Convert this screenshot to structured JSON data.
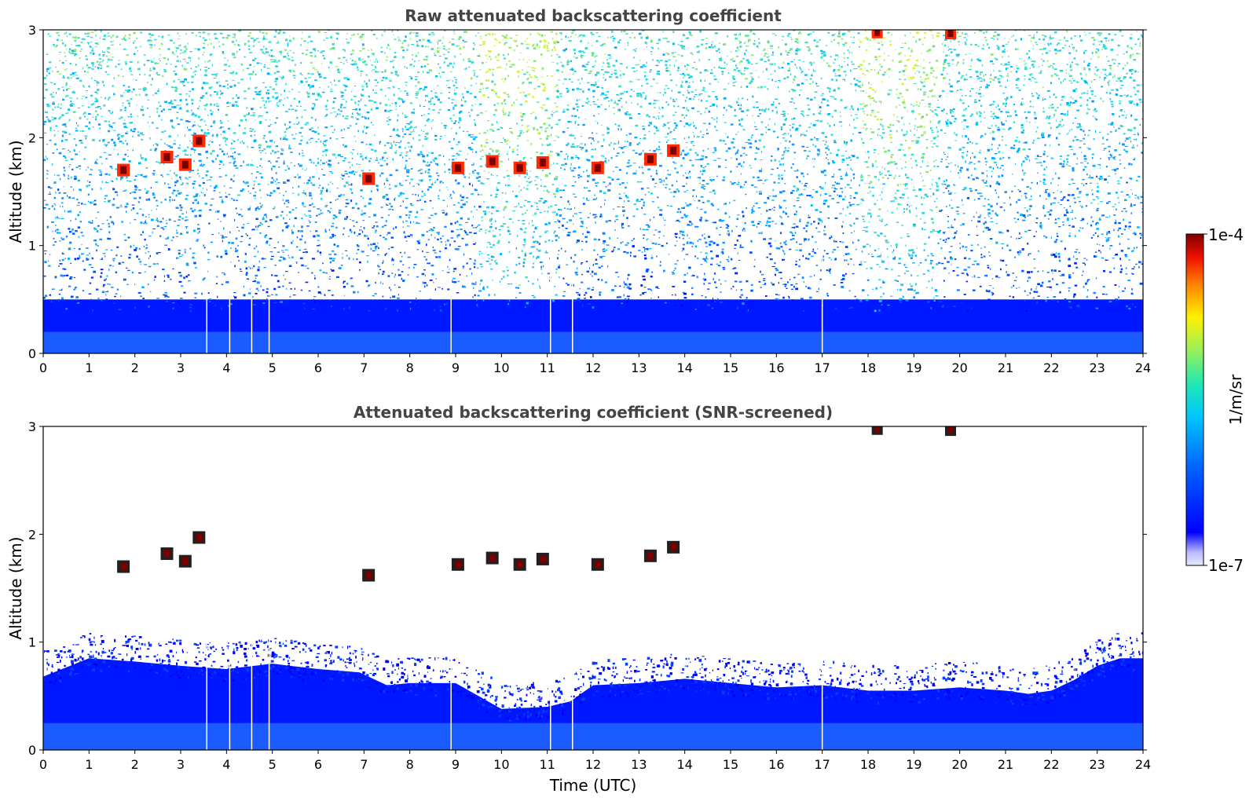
{
  "chart_data": [
    {
      "type": "heatmap",
      "title": "Raw attenuated backscattering coefficient",
      "xlabel": "",
      "ylabel": "Altitude (km)",
      "xlim": [
        0,
        24
      ],
      "ylim": [
        0,
        3
      ],
      "xticks": [
        "0",
        "1",
        "2",
        "3",
        "4",
        "5",
        "6",
        "7",
        "8",
        "9",
        "10",
        "11",
        "12",
        "13",
        "14",
        "15",
        "16",
        "17",
        "18",
        "19",
        "20",
        "21",
        "22",
        "23",
        "24"
      ],
      "yticks": [
        "0",
        "1",
        "2",
        "3"
      ],
      "noise_level": "high above ~0.5 km",
      "aerosol_layer_top_km": 0.5,
      "cloud_patches": [
        {
          "t": 1.75,
          "z": 1.7
        },
        {
          "t": 2.7,
          "z": 1.82
        },
        {
          "t": 3.1,
          "z": 1.75
        },
        {
          "t": 3.4,
          "z": 1.97
        },
        {
          "t": 7.1,
          "z": 1.62
        },
        {
          "t": 9.05,
          "z": 1.72
        },
        {
          "t": 9.8,
          "z": 1.78
        },
        {
          "t": 10.4,
          "z": 1.72
        },
        {
          "t": 10.9,
          "z": 1.77
        },
        {
          "t": 12.1,
          "z": 1.72
        },
        {
          "t": 13.25,
          "z": 1.8
        },
        {
          "t": 13.75,
          "z": 1.88
        },
        {
          "t": 18.2,
          "z": 2.98
        },
        {
          "t": 19.8,
          "z": 2.97
        }
      ],
      "data_gaps_utc": [
        3.57,
        4.07,
        4.55,
        4.93,
        8.9,
        11.07,
        11.55,
        17.0
      ]
    },
    {
      "type": "heatmap",
      "title": "Attenuated backscattering coefficient (SNR-screened)",
      "xlabel": "Time (UTC)",
      "ylabel": "Altitude (km)",
      "xlim": [
        0,
        24
      ],
      "ylim": [
        0,
        3
      ],
      "xticks": [
        "0",
        "1",
        "2",
        "3",
        "4",
        "5",
        "6",
        "7",
        "8",
        "9",
        "10",
        "11",
        "12",
        "13",
        "14",
        "15",
        "16",
        "17",
        "18",
        "19",
        "20",
        "21",
        "22",
        "23",
        "24"
      ],
      "yticks": [
        "0",
        "1",
        "2",
        "3"
      ],
      "boundary_layer_top_km": {
        "t": [
          0,
          1,
          2,
          3,
          4,
          5,
          6,
          6.9,
          7.5,
          8,
          9,
          9.5,
          10,
          11,
          11.5,
          12,
          13,
          14,
          15,
          16,
          17,
          18,
          19,
          20,
          21,
          21.5,
          22,
          22.5,
          23,
          23.5,
          24
        ],
        "z": [
          0.68,
          0.85,
          0.82,
          0.78,
          0.75,
          0.8,
          0.75,
          0.72,
          0.6,
          0.62,
          0.62,
          0.5,
          0.38,
          0.4,
          0.45,
          0.6,
          0.62,
          0.66,
          0.62,
          0.58,
          0.6,
          0.55,
          0.55,
          0.58,
          0.55,
          0.52,
          0.55,
          0.65,
          0.78,
          0.85,
          0.85
        ]
      },
      "cloud_patches": [
        {
          "t": 1.75,
          "z": 1.7
        },
        {
          "t": 2.7,
          "z": 1.82
        },
        {
          "t": 3.1,
          "z": 1.75
        },
        {
          "t": 3.4,
          "z": 1.97
        },
        {
          "t": 7.1,
          "z": 1.62
        },
        {
          "t": 9.05,
          "z": 1.72
        },
        {
          "t": 9.8,
          "z": 1.78
        },
        {
          "t": 10.4,
          "z": 1.72
        },
        {
          "t": 10.9,
          "z": 1.77
        },
        {
          "t": 12.1,
          "z": 1.72
        },
        {
          "t": 13.25,
          "z": 1.8
        },
        {
          "t": 13.75,
          "z": 1.88
        },
        {
          "t": 18.2,
          "z": 2.98
        },
        {
          "t": 19.8,
          "z": 2.97
        }
      ],
      "data_gaps_utc": [
        3.57,
        4.07,
        4.55,
        4.93,
        8.9,
        11.07,
        11.55,
        17.0
      ]
    }
  ],
  "colorbar": {
    "label": "1/m/sr",
    "max_label": "1e-4",
    "min_label": "1e-7",
    "scale": "log",
    "range": [
      1e-07,
      0.0001
    ],
    "colormap": "jet"
  }
}
